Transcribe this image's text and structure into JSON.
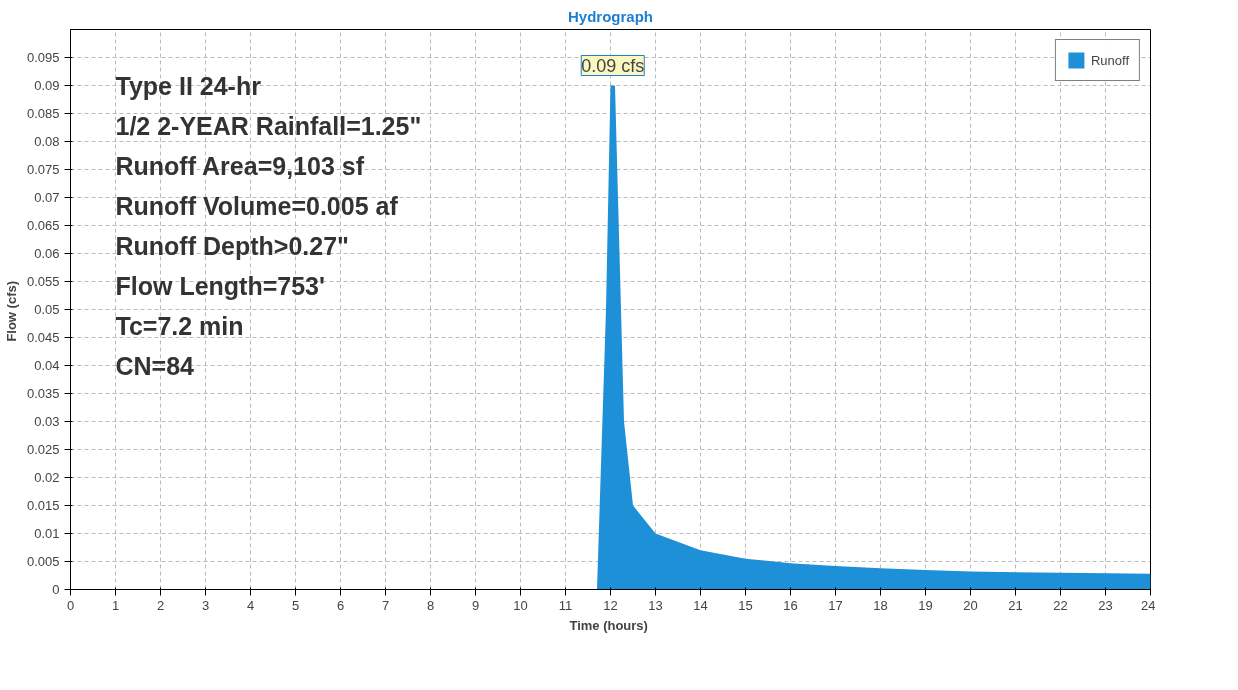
{
  "chart_data": {
    "type": "area",
    "title": "Hydrograph",
    "xlabel": "Time  (hours)",
    "ylabel": "Flow  (cfs)",
    "x": [
      0,
      11.7,
      11.9,
      12.0,
      12.1,
      12.3,
      12.5,
      13,
      14,
      15,
      16,
      17,
      18,
      19,
      20,
      22,
      24
    ],
    "series": [
      {
        "name": "Runoff",
        "color": "#1e90d8",
        "values": [
          0,
          0,
          0.05,
          0.09,
          0.09,
          0.03,
          0.015,
          0.01,
          0.007,
          0.0055,
          0.0047,
          0.0042,
          0.0038,
          0.0035,
          0.0032,
          0.003,
          0.0028
        ]
      }
    ],
    "xlim": [
      0,
      24
    ],
    "ylim": [
      0,
      0.1
    ],
    "xticks": [
      0,
      1,
      2,
      3,
      4,
      5,
      6,
      7,
      8,
      9,
      10,
      11,
      12,
      13,
      14,
      15,
      16,
      17,
      18,
      19,
      20,
      21,
      22,
      23,
      24
    ],
    "yticks": [
      0,
      0.005,
      0.01,
      0.015,
      0.02,
      0.025,
      0.03,
      0.035,
      0.04,
      0.045,
      0.05,
      0.055,
      0.06,
      0.065,
      0.07,
      0.075,
      0.08,
      0.085,
      0.09,
      0.095
    ],
    "grid": true,
    "legend": "top right",
    "annotations": [
      {
        "text": "0.09 cfs",
        "x": 12.05,
        "y": 0.09
      },
      "Type II 24-hr",
      "1/2 2-YEAR Rainfall=1.25\"",
      "Runoff Area=9,103 sf",
      "Runoff Volume=0.005 af",
      "Runoff Depth>0.27\"",
      "Flow Length=753'",
      "Tc=7.2 min",
      "CN=84"
    ]
  }
}
